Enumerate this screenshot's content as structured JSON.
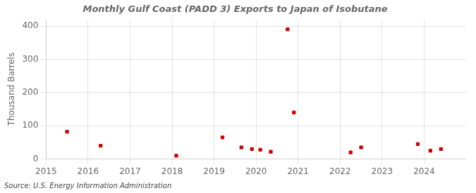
{
  "chart_data": {
    "type": "scatter",
    "title": "Monthly Gulf Coast (PADD 3) Exports to Japan of Isobutane",
    "ylabel": "Thousand Barrels",
    "source": "Source: U.S. Energy Information Administration",
    "x": [
      2015.5,
      2016.3,
      2018.1,
      2019.2,
      2019.65,
      2019.9,
      2020.1,
      2020.35,
      2020.75,
      2020.9,
      2022.25,
      2022.5,
      2023.85,
      2024.15,
      2024.4
    ],
    "values": [
      82,
      40,
      10,
      65,
      35,
      30,
      28,
      22,
      390,
      140,
      20,
      35,
      45,
      25,
      30
    ],
    "color": "#cc0000",
    "marker": "square",
    "xlim": [
      2015,
      2025
    ],
    "xticks": [
      2015,
      2016,
      2017,
      2018,
      2019,
      2020,
      2021,
      2022,
      2023,
      2024
    ],
    "ylim": [
      0,
      420
    ],
    "yticks": [
      0,
      100,
      200,
      300,
      400
    ],
    "grid": true
  }
}
